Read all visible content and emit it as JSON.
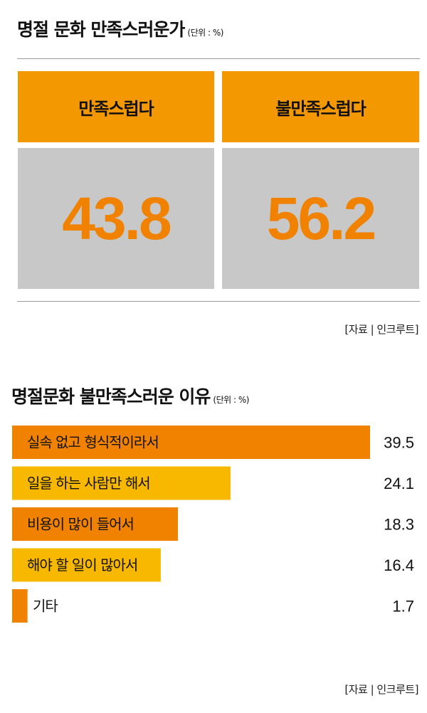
{
  "satisfaction": {
    "title": "명절 문화 만족스러운가",
    "unit": "(단위 : %)",
    "items": [
      {
        "label": "만족스럽다",
        "value": "43.8"
      },
      {
        "label": "불만족스럽다",
        "value": "56.2"
      }
    ],
    "source": "[자료 | 인크루트]"
  },
  "reasons": {
    "title": "명절문화 불만족스러운 이유",
    "unit": "(단위 : %)",
    "source": "[자료 | 인크루트]"
  },
  "colors": {
    "orange_dark": "#f08200",
    "orange_light": "#f8b800",
    "header_orange": "#f39800",
    "gray_box": "#c8c8c8"
  },
  "chart_data": [
    {
      "type": "table",
      "title": "명절 문화 만족스러운가",
      "categories": [
        "만족스럽다",
        "불만족스럽다"
      ],
      "values": [
        43.8,
        56.2
      ]
    },
    {
      "type": "bar",
      "orientation": "horizontal",
      "title": "명절문화 불만족스러운 이유",
      "categories": [
        "실속 없고 형식적이라서",
        "일을 하는 사람만 해서",
        "비용이 많이 들어서",
        "해야 할 일이 많아서",
        "기타"
      ],
      "values": [
        39.5,
        24.1,
        18.3,
        16.4,
        1.7
      ],
      "value_labels": [
        "39.5",
        "24.1",
        "18.3",
        "16.4",
        "1.7"
      ],
      "bar_colors": [
        "#f08200",
        "#f8b800",
        "#f08200",
        "#f8b800",
        "#f08200"
      ],
      "xlim": [
        0,
        39.5
      ]
    }
  ]
}
